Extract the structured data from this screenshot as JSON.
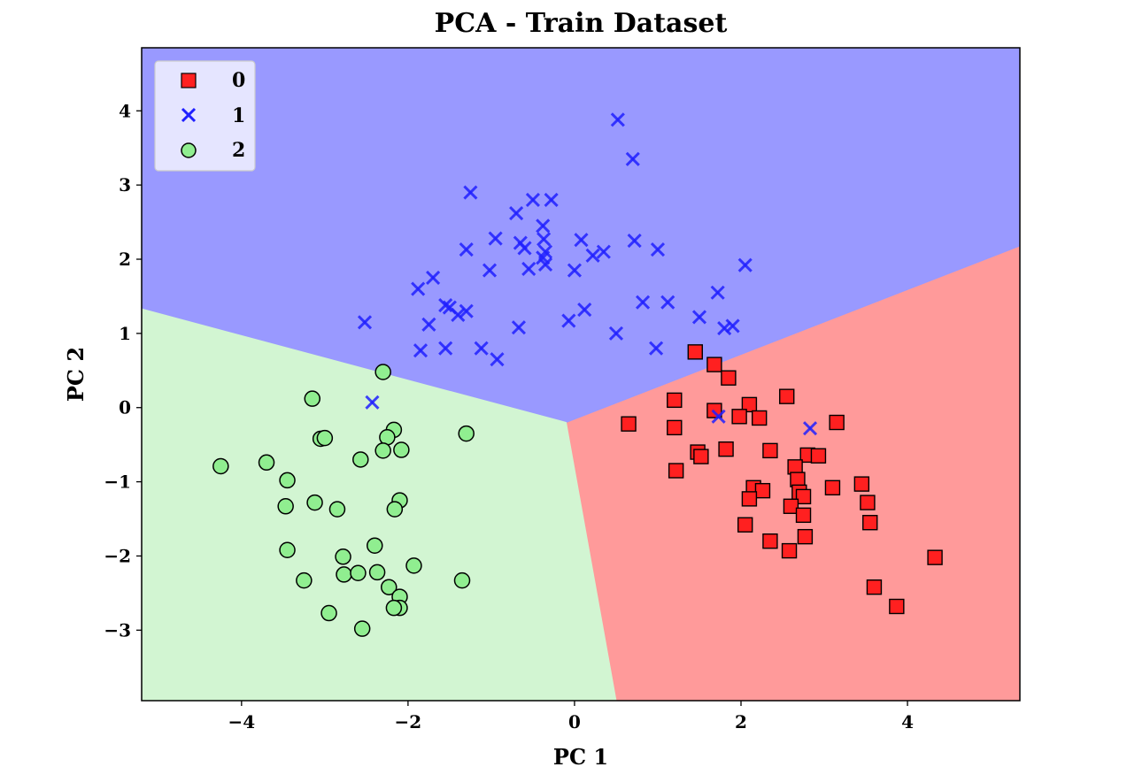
{
  "chart_data": {
    "type": "scatter",
    "title": "PCA - Train Dataset",
    "xlabel": "PC 1",
    "ylabel": "PC 2",
    "xlim": [
      -5.2,
      5.35
    ],
    "ylim": [
      -3.95,
      4.85
    ],
    "xticks": [
      -4,
      -2,
      0,
      2,
      4
    ],
    "yticks": [
      -3,
      -2,
      -1,
      0,
      1,
      2,
      3,
      4
    ],
    "xtick_labels": [
      "−4",
      "−2",
      "0",
      "2",
      "4"
    ],
    "ytick_labels": [
      "−3",
      "−2",
      "−1",
      "0",
      "1",
      "2",
      "3",
      "4"
    ],
    "grid": false,
    "legend_position": "top-left",
    "decision_regions": [
      {
        "class": "0",
        "color": "#ff9a9a",
        "polygon": [
          [
            -0.1,
            -0.2
          ],
          [
            5.35,
            2.18
          ],
          [
            5.35,
            -3.95
          ],
          [
            0.5,
            -3.95
          ]
        ]
      },
      {
        "class": "1",
        "color": "#9999ff",
        "polygon": [
          [
            -5.2,
            1.33
          ],
          [
            -0.1,
            -0.2
          ],
          [
            5.35,
            2.18
          ],
          [
            5.35,
            4.85
          ],
          [
            -5.2,
            4.85
          ]
        ]
      },
      {
        "class": "2",
        "color": "#d2f5d2",
        "polygon": [
          [
            -5.2,
            -3.95
          ],
          [
            0.5,
            -3.95
          ],
          [
            -0.1,
            -0.2
          ],
          [
            -5.2,
            1.33
          ]
        ]
      }
    ],
    "series": [
      {
        "name": "0",
        "marker": "square",
        "color": "#ff2020",
        "points": [
          [
            1.45,
            0.75
          ],
          [
            1.68,
            0.58
          ],
          [
            1.85,
            0.4
          ],
          [
            2.55,
            0.15
          ],
          [
            1.2,
            0.1
          ],
          [
            2.1,
            0.04
          ],
          [
            1.68,
            -0.04
          ],
          [
            1.98,
            -0.12
          ],
          [
            2.22,
            -0.14
          ],
          [
            0.65,
            -0.22
          ],
          [
            1.2,
            -0.27
          ],
          [
            3.15,
            -0.2
          ],
          [
            1.48,
            -0.6
          ],
          [
            1.52,
            -0.66
          ],
          [
            1.82,
            -0.56
          ],
          [
            2.35,
            -0.58
          ],
          [
            2.8,
            -0.64
          ],
          [
            2.93,
            -0.65
          ],
          [
            2.65,
            -0.8
          ],
          [
            1.22,
            -0.85
          ],
          [
            2.68,
            -0.97
          ],
          [
            2.15,
            -1.08
          ],
          [
            2.26,
            -1.12
          ],
          [
            2.7,
            -1.14
          ],
          [
            3.1,
            -1.08
          ],
          [
            3.45,
            -1.03
          ],
          [
            2.1,
            -1.23
          ],
          [
            2.75,
            -1.2
          ],
          [
            2.6,
            -1.33
          ],
          [
            3.52,
            -1.28
          ],
          [
            2.75,
            -1.45
          ],
          [
            3.55,
            -1.55
          ],
          [
            2.05,
            -1.58
          ],
          [
            2.35,
            -1.8
          ],
          [
            2.77,
            -1.74
          ],
          [
            2.58,
            -1.93
          ],
          [
            4.33,
            -2.02
          ],
          [
            3.6,
            -2.42
          ],
          [
            3.87,
            -2.68
          ]
        ]
      },
      {
        "name": "1",
        "marker": "x",
        "color": "#2020ff",
        "points": [
          [
            0.52,
            3.88
          ],
          [
            0.7,
            3.35
          ],
          [
            -1.25,
            2.9
          ],
          [
            -0.5,
            2.8
          ],
          [
            -0.28,
            2.8
          ],
          [
            -0.7,
            2.62
          ],
          [
            -0.38,
            2.45
          ],
          [
            -0.95,
            2.28
          ],
          [
            -0.37,
            2.27
          ],
          [
            0.08,
            2.26
          ],
          [
            0.72,
            2.25
          ],
          [
            -0.65,
            2.22
          ],
          [
            -0.6,
            2.15
          ],
          [
            -1.3,
            2.13
          ],
          [
            -0.35,
            2.1
          ],
          [
            0.35,
            2.1
          ],
          [
            0.22,
            2.05
          ],
          [
            1.0,
            2.13
          ],
          [
            -0.38,
            2.02
          ],
          [
            -0.35,
            1.93
          ],
          [
            2.05,
            1.92
          ],
          [
            -0.55,
            1.87
          ],
          [
            -1.02,
            1.85
          ],
          [
            0.0,
            1.85
          ],
          [
            -1.7,
            1.75
          ],
          [
            -1.88,
            1.6
          ],
          [
            1.72,
            1.55
          ],
          [
            0.82,
            1.42
          ],
          [
            1.12,
            1.42
          ],
          [
            -1.55,
            1.38
          ],
          [
            -1.5,
            1.35
          ],
          [
            -1.3,
            1.3
          ],
          [
            0.12,
            1.32
          ],
          [
            -1.4,
            1.25
          ],
          [
            1.5,
            1.22
          ],
          [
            -2.52,
            1.15
          ],
          [
            -0.07,
            1.17
          ],
          [
            -1.75,
            1.12
          ],
          [
            -0.67,
            1.08
          ],
          [
            1.8,
            1.07
          ],
          [
            1.9,
            1.1
          ],
          [
            0.5,
            1.0
          ],
          [
            -1.85,
            0.77
          ],
          [
            -1.55,
            0.8
          ],
          [
            -1.12,
            0.8
          ],
          [
            0.98,
            0.8
          ],
          [
            -0.93,
            0.65
          ],
          [
            -2.43,
            0.07
          ],
          [
            1.73,
            -0.12
          ],
          [
            2.83,
            -0.28
          ]
        ]
      },
      {
        "name": "2",
        "marker": "circle",
        "color": "#90ee90",
        "points": [
          [
            -2.3,
            0.48
          ],
          [
            -3.15,
            0.12
          ],
          [
            -1.3,
            -0.35
          ],
          [
            -2.17,
            -0.3
          ],
          [
            -2.25,
            -0.4
          ],
          [
            -3.05,
            -0.42
          ],
          [
            -3.0,
            -0.41
          ],
          [
            -4.25,
            -0.79
          ],
          [
            -3.7,
            -0.74
          ],
          [
            -2.08,
            -0.57
          ],
          [
            -2.3,
            -0.58
          ],
          [
            -2.57,
            -0.7
          ],
          [
            -3.45,
            -0.98
          ],
          [
            -2.1,
            -1.25
          ],
          [
            -3.47,
            -1.33
          ],
          [
            -3.12,
            -1.28
          ],
          [
            -2.85,
            -1.37
          ],
          [
            -2.16,
            -1.37
          ],
          [
            -2.4,
            -1.86
          ],
          [
            -3.45,
            -1.92
          ],
          [
            -2.78,
            -2.01
          ],
          [
            -1.93,
            -2.13
          ],
          [
            -2.37,
            -2.22
          ],
          [
            -2.77,
            -2.25
          ],
          [
            -2.6,
            -2.23
          ],
          [
            -3.25,
            -2.33
          ],
          [
            -1.35,
            -2.33
          ],
          [
            -2.23,
            -2.42
          ],
          [
            -2.1,
            -2.55
          ],
          [
            -2.1,
            -2.7
          ],
          [
            -2.17,
            -2.7
          ],
          [
            -2.95,
            -2.77
          ],
          [
            -2.55,
            -2.98
          ]
        ]
      }
    ]
  }
}
